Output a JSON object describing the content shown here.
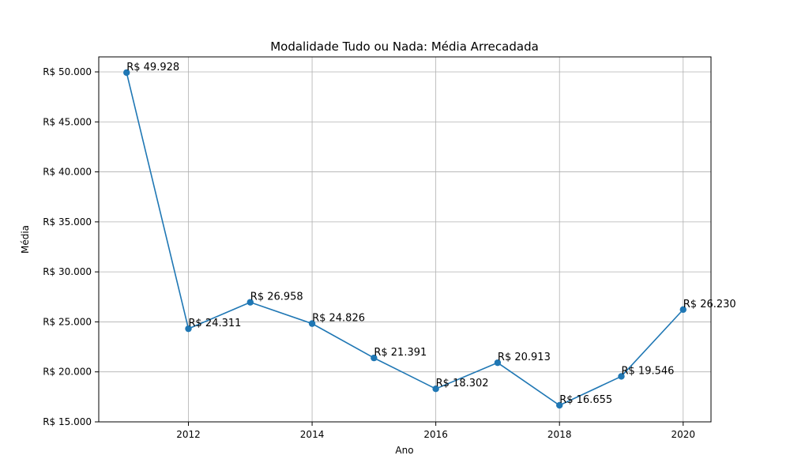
{
  "chart_data": {
    "type": "line",
    "title": "Modalidade Tudo ou Nada: Média Arrecadada",
    "xlabel": "Ano",
    "ylabel": "Média",
    "x": [
      2011,
      2012,
      2013,
      2014,
      2015,
      2016,
      2017,
      2018,
      2019,
      2020
    ],
    "values": [
      49928,
      24311,
      26958,
      24826,
      21391,
      18302,
      20913,
      16655,
      19546,
      26230
    ],
    "data_labels": [
      "R$ 49.928",
      "R$ 24.311",
      "R$ 26.958",
      "R$ 24.826",
      "R$ 21.391",
      "R$ 18.302",
      "R$ 20.913",
      "R$ 16.655",
      "R$ 19.546",
      "R$ 26.230"
    ],
    "xlim": [
      2010.55,
      2020.45
    ],
    "ylim": [
      15000,
      51500
    ],
    "x_ticks": [
      2012,
      2014,
      2016,
      2018,
      2020
    ],
    "x_tick_labels": [
      "2012",
      "2014",
      "2016",
      "2018",
      "2020"
    ],
    "y_ticks": [
      15000,
      20000,
      25000,
      30000,
      35000,
      40000,
      45000,
      50000
    ],
    "y_tick_labels": [
      "R$ 15.000",
      "R$ 20.000",
      "R$ 25.000",
      "R$ 30.000",
      "R$ 35.000",
      "R$ 40.000",
      "R$ 45.000",
      "R$ 50.000"
    ],
    "grid": true,
    "line_color": "#1f77b4",
    "marker": "circle"
  }
}
